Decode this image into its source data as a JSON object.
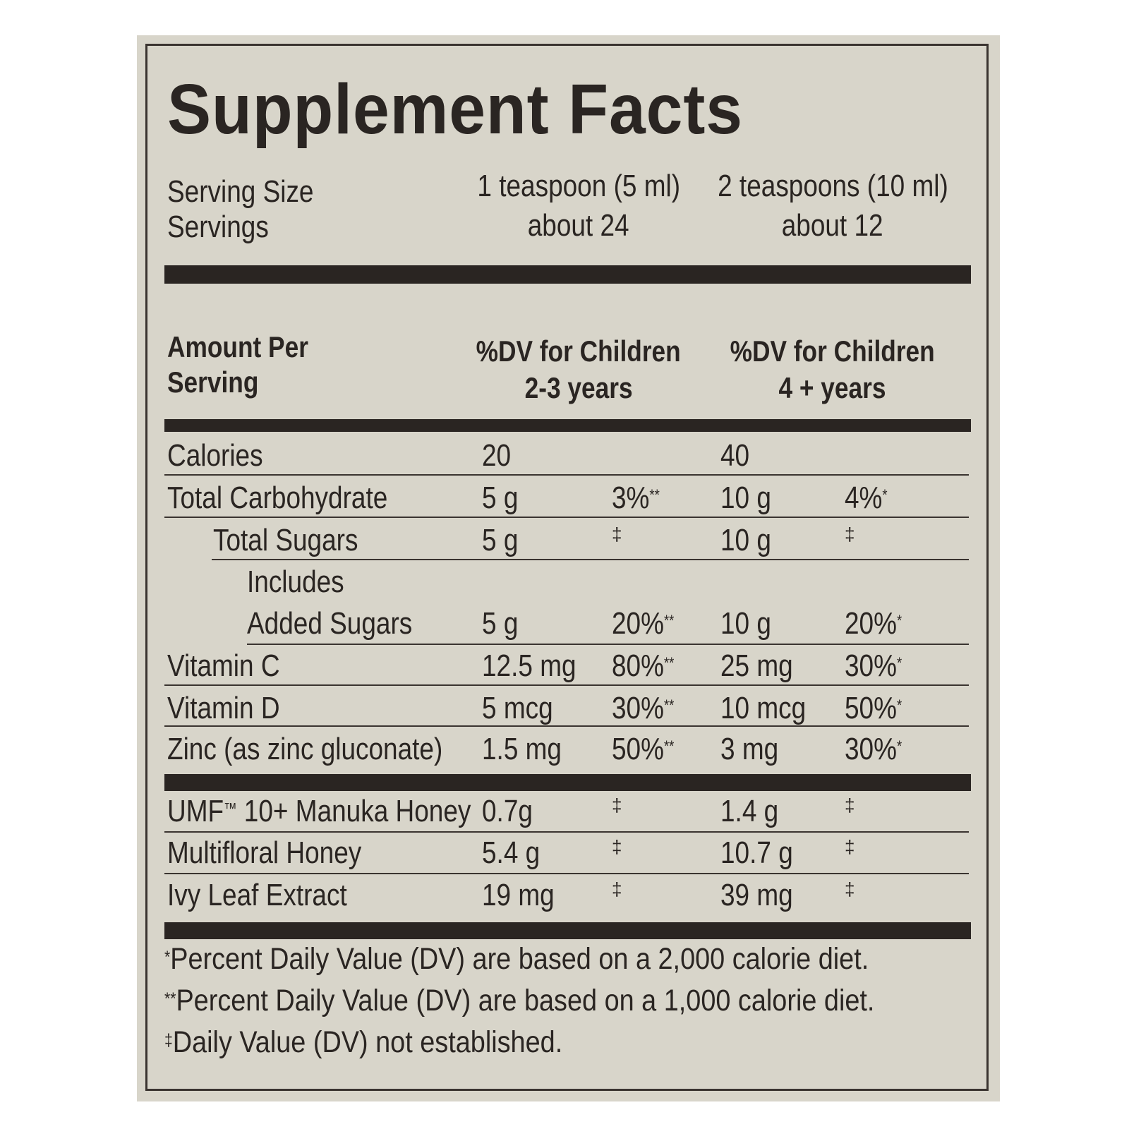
{
  "title": "Supplement Facts",
  "serving": {
    "size_label": "Serving Size",
    "servings_label": "Servings",
    "col1_size": "1 teaspoon (5 ml)",
    "col1_servings": "about 24",
    "col2_size": "2 teaspoons (10 ml)",
    "col2_servings": "about 12"
  },
  "header": {
    "amount_line1": "Amount Per",
    "amount_line2": "Serving",
    "col1_line1": "%DV for Children",
    "col1_line2": "2-3 years",
    "col2_line1": "%DV for Children",
    "col2_line2": "4 + years"
  },
  "rows": [
    {
      "name": "Calories",
      "amt1": "20",
      "dv1": "",
      "dv1_mark": "",
      "amt2": "40",
      "dv2": "",
      "dv2_mark": ""
    },
    {
      "name": "Total Carbohydrate",
      "amt1": "5 g",
      "dv1": "3%",
      "dv1_mark": "**",
      "amt2": "10 g",
      "dv2": "4%",
      "dv2_mark": "*"
    },
    {
      "name": "Total Sugars",
      "amt1": "5 g",
      "dv1": "‡",
      "dv1_mark": "",
      "amt2": "10 g",
      "dv2": "‡",
      "dv2_mark": ""
    },
    {
      "name_line1": "Includes",
      "name": "Added Sugars",
      "amt1": "5 g",
      "dv1": "20%",
      "dv1_mark": "**",
      "amt2": "10 g",
      "dv2": "20%",
      "dv2_mark": "*"
    },
    {
      "name": "Vitamin C",
      "amt1": "12.5 mg",
      "dv1": "80%",
      "dv1_mark": "**",
      "amt2": "25 mg",
      "dv2": "30%",
      "dv2_mark": "*"
    },
    {
      "name": "Vitamin D",
      "amt1": "5 mcg",
      "dv1": "30%",
      "dv1_mark": "**",
      "amt2": "10 mcg",
      "dv2": "50%",
      "dv2_mark": "*"
    },
    {
      "name": "Zinc (as zinc gluconate)",
      "amt1": "1.5 mg",
      "dv1": "50%",
      "dv1_mark": "**",
      "amt2": "3 mg",
      "dv2": "30%",
      "dv2_mark": "*"
    }
  ],
  "other_rows": [
    {
      "name": "UMF",
      "name_mark": "™",
      "name_rest": " 10+ Manuka Honey",
      "amt1": "0.7g",
      "dv1": "‡",
      "amt2": "1.4 g",
      "dv2": "‡"
    },
    {
      "name": "Multifloral Honey",
      "amt1": "5.4 g",
      "dv1": "‡",
      "amt2": "10.7 g",
      "dv2": "‡"
    },
    {
      "name": "Ivy Leaf Extract",
      "amt1": "19 mg",
      "dv1": "‡",
      "amt2": "39 mg",
      "dv2": "‡"
    }
  ],
  "footnotes": [
    {
      "mark": "*",
      "text": "Percent Daily Value (DV) are based on a 2,000 calorie diet."
    },
    {
      "mark": "**",
      "text": "Percent Daily Value (DV) are based on a 1,000 calorie diet."
    },
    {
      "mark": "‡",
      "text": "Daily Value (DV) not established."
    }
  ],
  "colors": {
    "ink": "#2a2522",
    "background": "#d8d5ca"
  }
}
